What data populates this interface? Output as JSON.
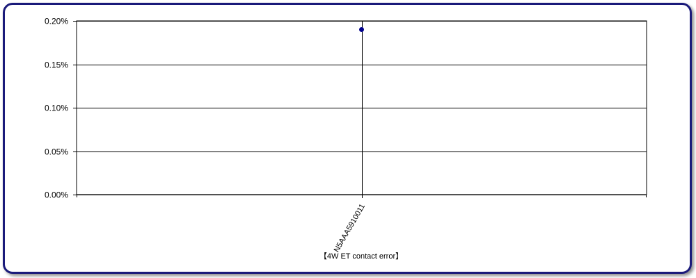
{
  "chart_data": {
    "type": "scatter",
    "categories": [
      "N5AAA5910011"
    ],
    "series": [
      {
        "values": [
          0.0019
        ],
        "color": "#00008b"
      }
    ],
    "ylim": [
      0,
      0.002
    ],
    "yticks": [
      0,
      0.0005,
      0.001,
      0.0015,
      0.002
    ],
    "ytick_labels": [
      "0.00%",
      "0.05%",
      "0.10%",
      "0.15%",
      "0.20%"
    ],
    "xlabel": "【4W ET contact error】",
    "ylabel": "",
    "grid": true,
    "legend": "none"
  },
  "colors": {
    "frame_border": "#1a1a7a",
    "marker": "#00008b",
    "grid": "#000000"
  }
}
